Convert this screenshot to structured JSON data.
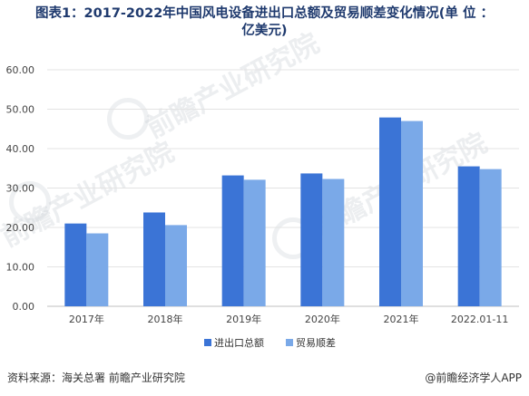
{
  "title": {
    "line1": "图表1：2017-2022年中国风电设备进出口总额及贸易顺差变化情况(单 位 ：",
    "line2": "亿美元)"
  },
  "colors": {
    "series1": "#3b74d6",
    "series2": "#7aa9e8"
  },
  "chart_data": {
    "type": "bar",
    "title": "图表1：2017-2022年中国风电设备进出口总额及贸易顺差变化情况(单 位 ：亿美元)",
    "categories": [
      "2017年",
      "2018年",
      "2019年",
      "2020年",
      "2021年",
      "2022.01-11"
    ],
    "series": [
      {
        "name": "进出口总额",
        "values": [
          21.0,
          23.8,
          33.2,
          33.7,
          47.9,
          35.5
        ]
      },
      {
        "name": "贸易顺差",
        "values": [
          18.5,
          20.6,
          32.1,
          32.3,
          47.0,
          34.8
        ]
      }
    ],
    "ylim": [
      0,
      60
    ],
    "yticks": [
      "0.00",
      "10.00",
      "20.00",
      "30.00",
      "40.00",
      "50.00",
      "60.00"
    ],
    "grid": true,
    "legend": "bottom"
  },
  "footer": {
    "source": "资料来源：海关总署 前瞻产业研究院",
    "brand": "@前瞻经济学人APP"
  },
  "watermark": {
    "text": "前瞻产业研究院"
  }
}
